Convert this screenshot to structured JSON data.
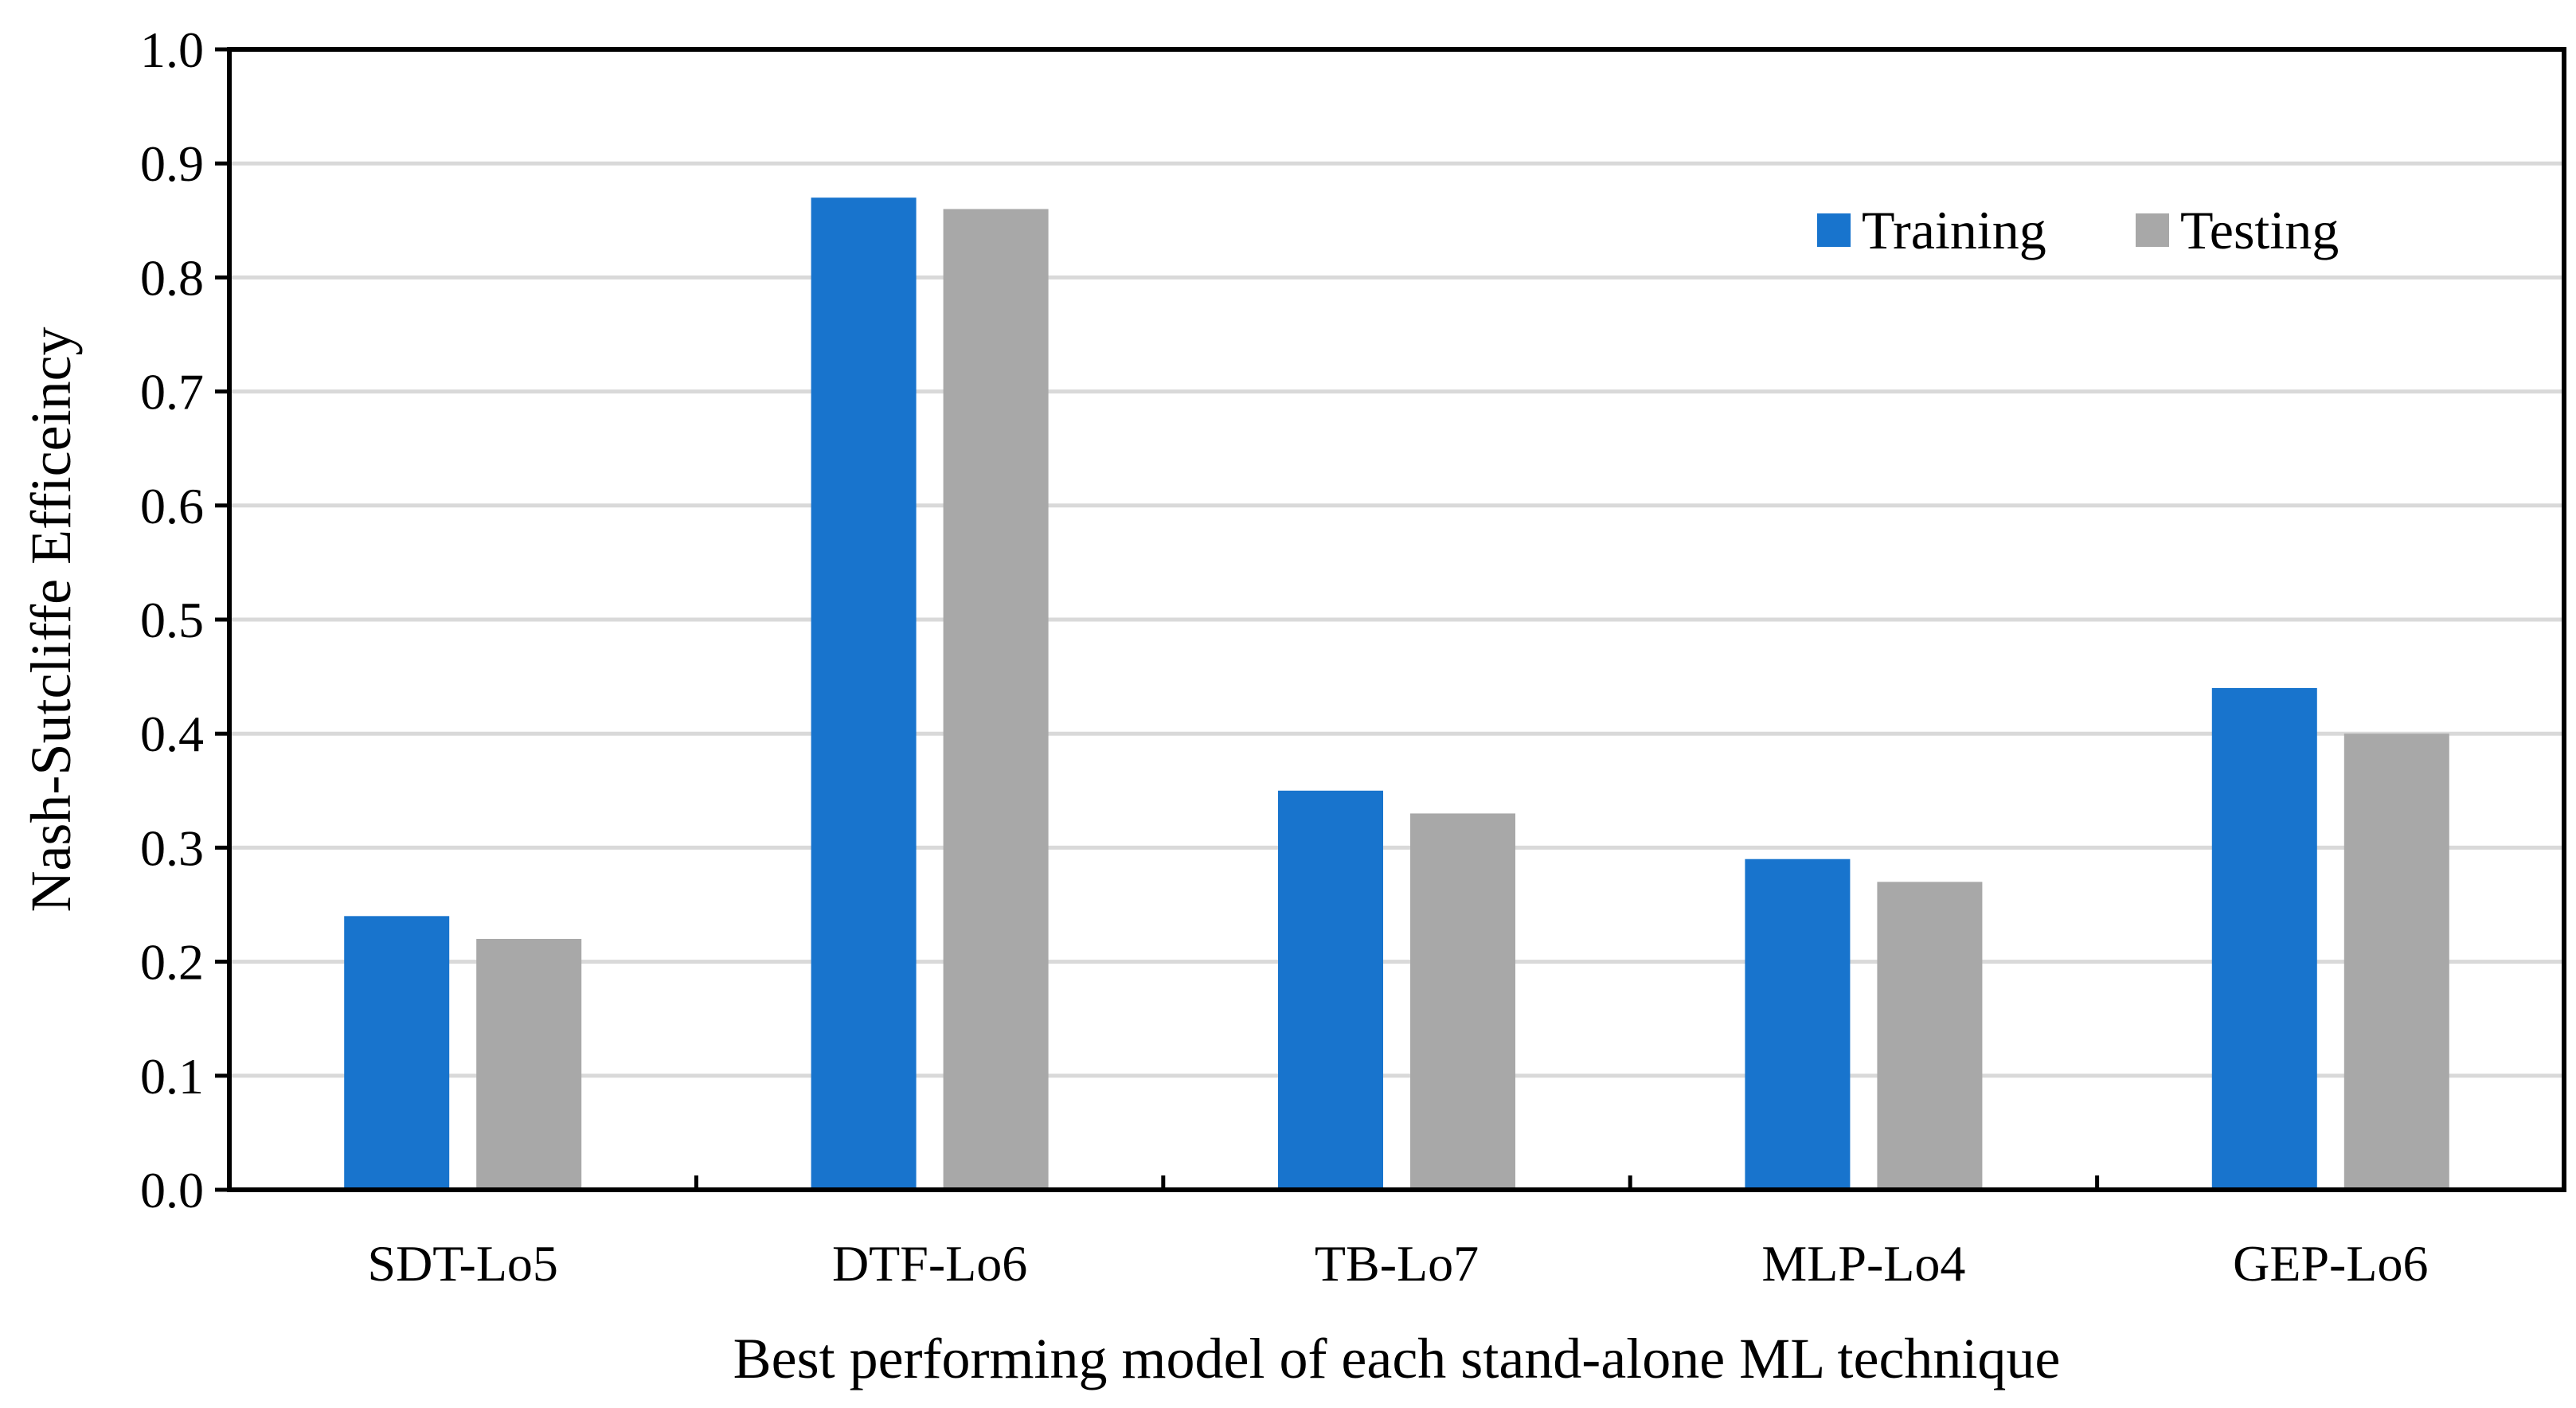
{
  "chart_data": {
    "type": "bar",
    "title": "",
    "xlabel": "Best performing model of each stand-alone ML technique",
    "ylabel": "Nash-Sutcliffe Efficeincy",
    "categories": [
      "SDT-Lo5",
      "DTF-Lo6",
      "TB-Lo7",
      "MLP-Lo4",
      "GEP-Lo6"
    ],
    "series": [
      {
        "name": "Training",
        "color": "#1874CD",
        "values": [
          0.24,
          0.87,
          0.35,
          0.29,
          0.44
        ]
      },
      {
        "name": "Testing",
        "color": "#A8A8A8",
        "values": [
          0.22,
          0.86,
          0.33,
          0.27,
          0.4
        ]
      }
    ],
    "ylim": [
      0,
      1.0
    ],
    "yticks": [
      "0.0",
      "0.1",
      "0.2",
      "0.3",
      "0.4",
      "0.5",
      "0.6",
      "0.7",
      "0.8",
      "0.9",
      "1.0"
    ],
    "grid": true,
    "legend_position": "top-right"
  }
}
